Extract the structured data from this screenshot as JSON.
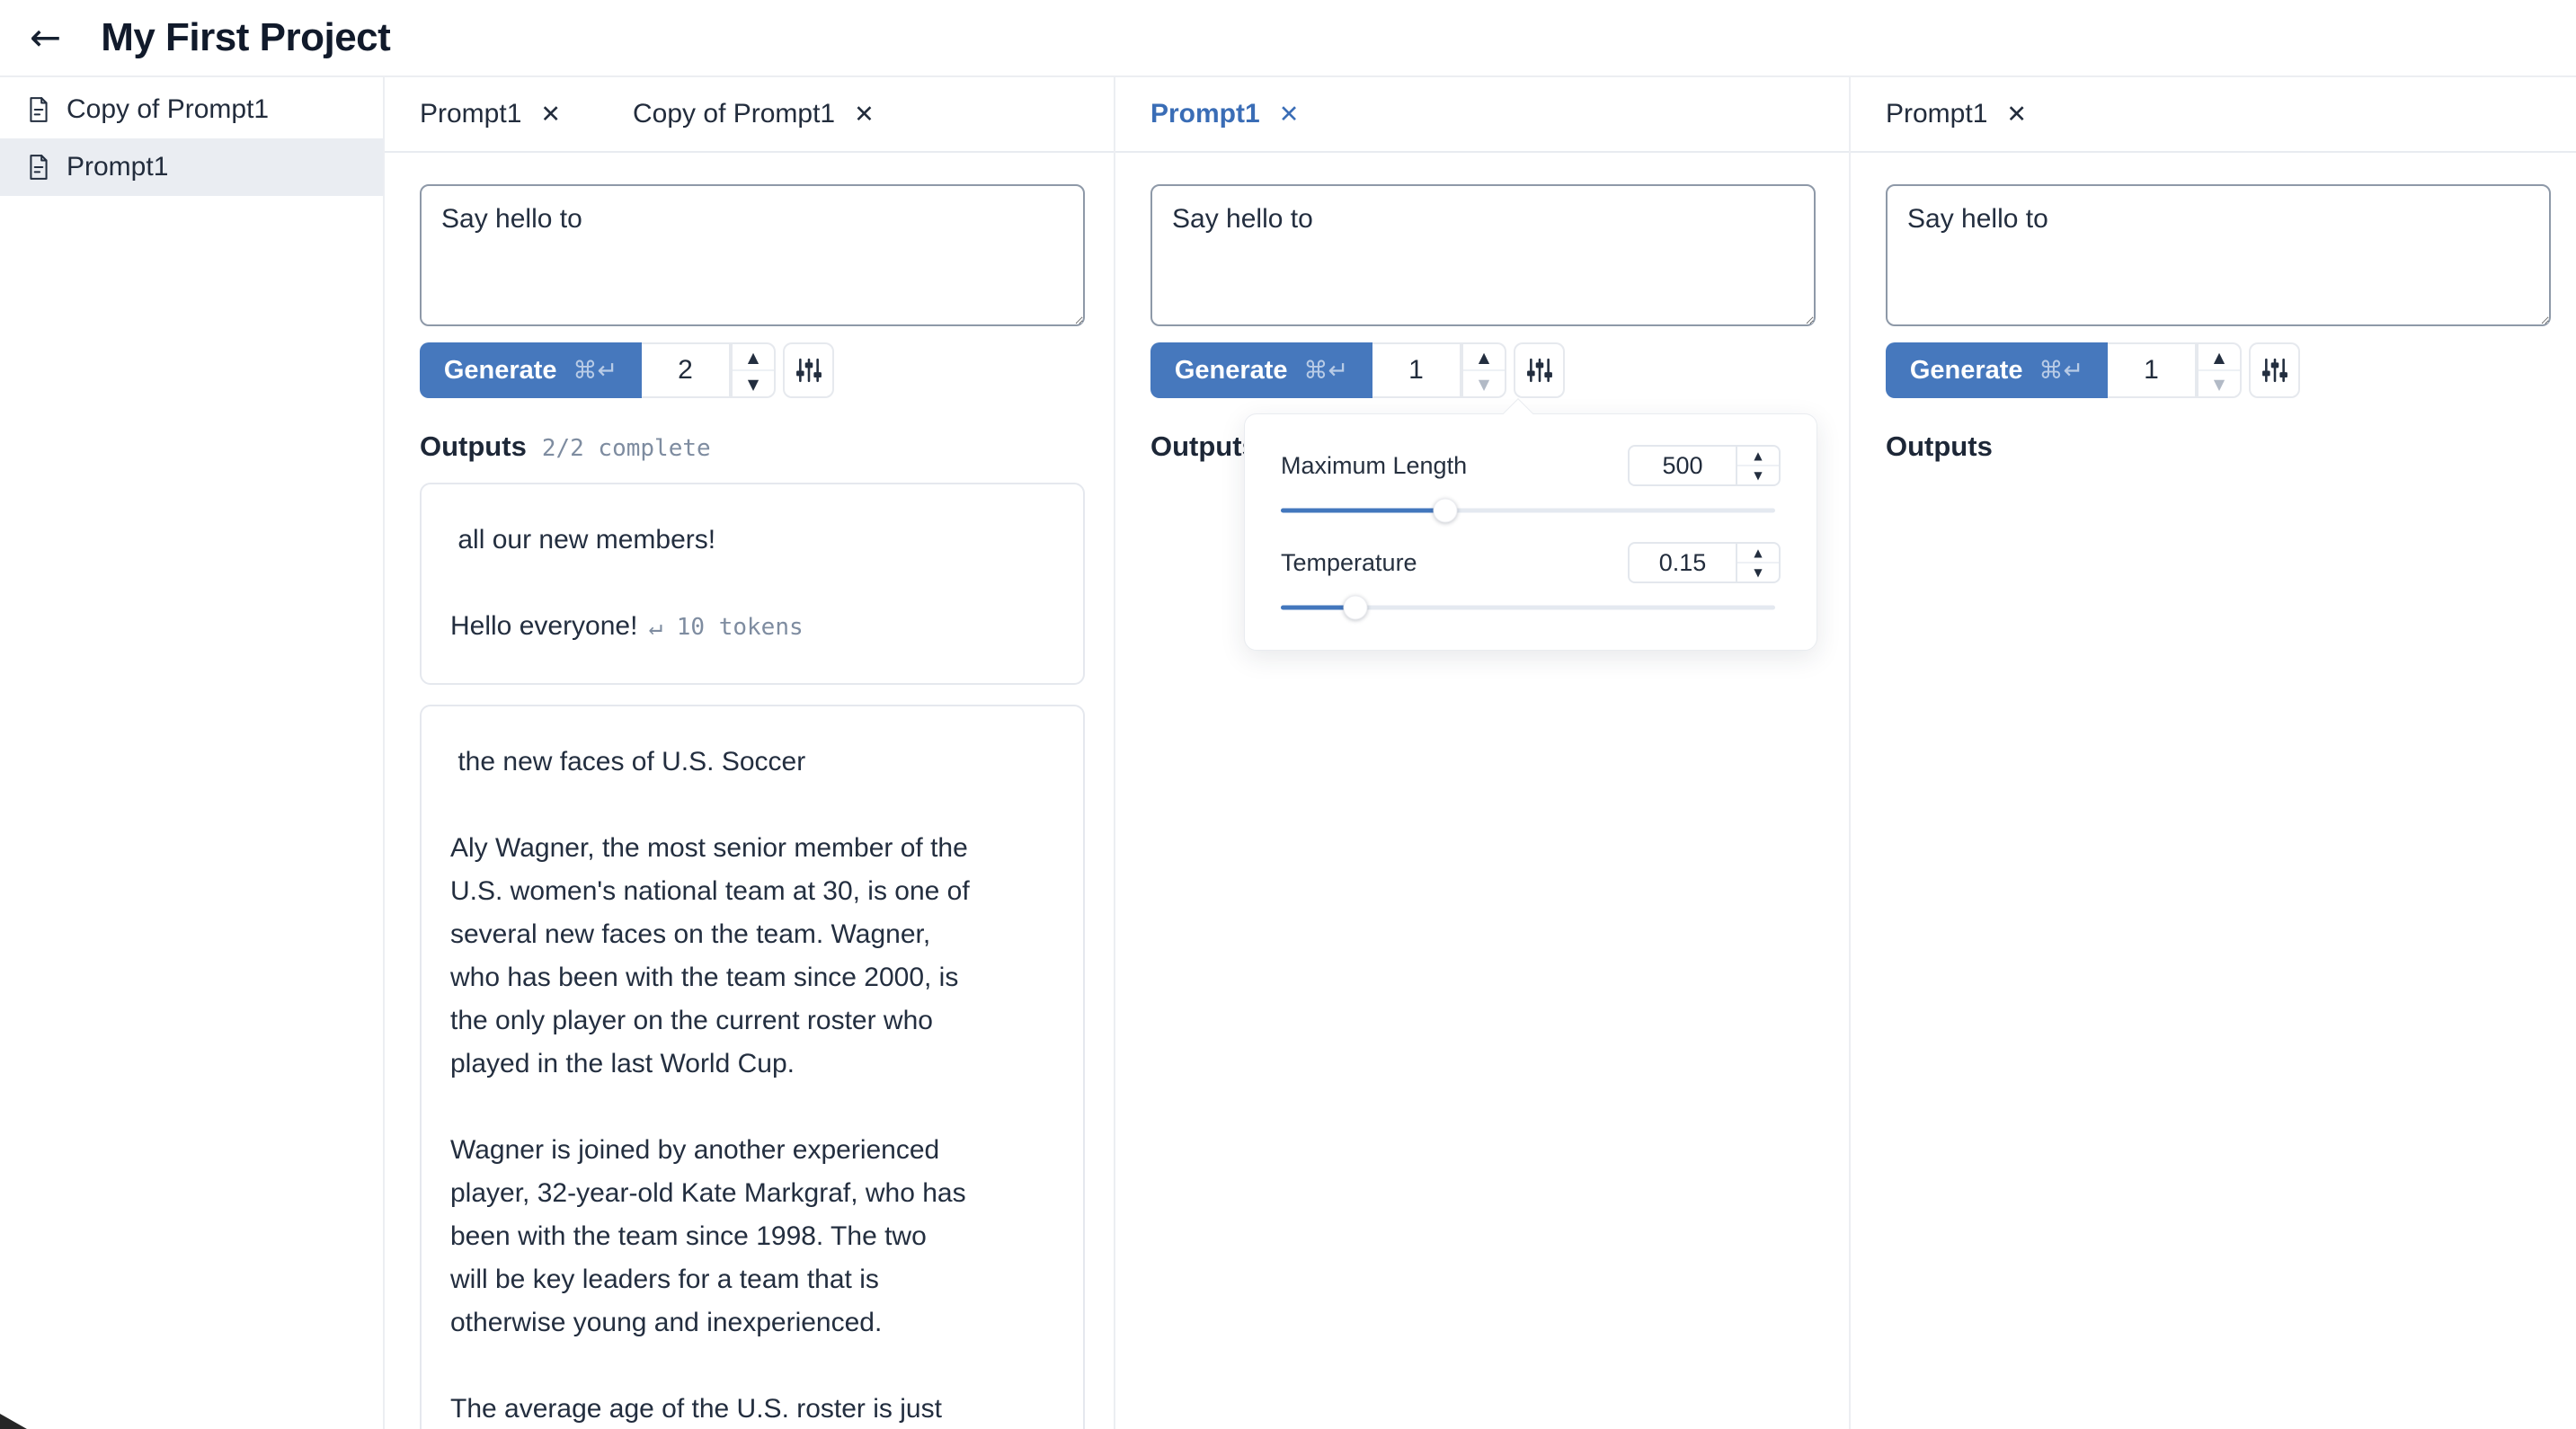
{
  "header": {
    "title": "My First Project"
  },
  "sidebar": {
    "items": [
      {
        "label": "Copy of Prompt1"
      },
      {
        "label": "Prompt1"
      }
    ]
  },
  "generate": {
    "label": "Generate",
    "shortcut": "⌘↵"
  },
  "stepper": {
    "up": "▲",
    "down": "▼"
  },
  "panels": [
    {
      "tabs": [
        {
          "label": "Prompt1",
          "close": "✕"
        },
        {
          "label": "Copy of Prompt1",
          "close": "✕"
        }
      ],
      "prompt": "Say hello to",
      "count": "2",
      "outputs": {
        "heading": "Outputs",
        "status": "2/2 complete"
      },
      "cards": [
        {
          "text": " all our new members!\n\nHello everyone!",
          "badge": "↵ 10 tokens"
        },
        {
          "text": " the new faces of U.S. Soccer\n\nAly Wagner, the most senior member of the\nU.S. women's national team at 30, is one of\nseveral new faces on the team. Wagner,\nwho has been with the team since 2000, is\nthe only player on the current roster who\nplayed in the last World Cup.\n\nWagner is joined by another experienced\nplayer, 32-year-old Kate Markgraf, who has\nbeen with the team since 1998. The two\nwill be key leaders for a team that is\notherwise young and inexperienced.\n\nThe average age of the U.S. roster is just"
        }
      ]
    },
    {
      "tabs": [
        {
          "label": "Prompt1",
          "close": "✕"
        }
      ],
      "prompt": "Say hello to",
      "count": "1",
      "outputs": {
        "heading": "Outputs"
      },
      "popover": {
        "rows": [
          {
            "label": "Maximum Length",
            "value": "500",
            "fill_pct": 33
          },
          {
            "label": "Temperature",
            "value": "0.15",
            "fill_pct": 15
          }
        ]
      }
    },
    {
      "tabs": [
        {
          "label": "Prompt1",
          "close": "✕"
        }
      ],
      "prompt": "Say hello to",
      "count": "1",
      "outputs": {
        "heading": "Outputs"
      }
    }
  ],
  "colors": {
    "accent_blue": "#4678bd",
    "active_tab_blue": "#3a6db6",
    "text_dark": "#232e3f",
    "muted_mono_gray": "#7e8ca0"
  }
}
